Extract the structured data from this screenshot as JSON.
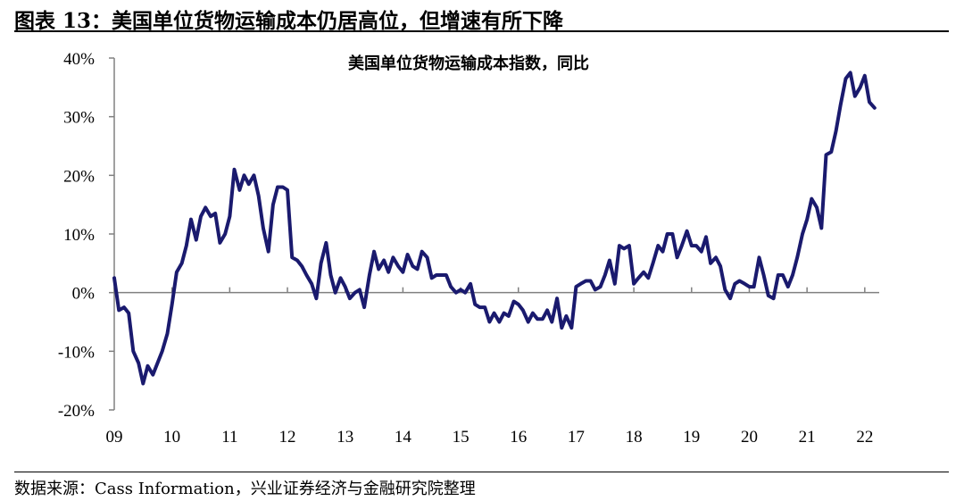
{
  "figure": {
    "title": "图表 13：美国单位货物运输成本仍居高位，但增速有所下降",
    "source": "数据来源：Cass Information，兴业证券经济与金融研究院整理"
  },
  "colors": {
    "line": "#1a1a6e",
    "axis": "#808080"
  },
  "chart_data": {
    "type": "line",
    "title": "美国单位货物运输成本指数，同比",
    "xlabel": "",
    "ylabel": "",
    "ylim": [
      -20,
      40
    ],
    "yticks": [
      -20,
      -10,
      0,
      10,
      20,
      30,
      40
    ],
    "ytick_labels": [
      "-20%",
      "-10%",
      "0%",
      "10%",
      "20%",
      "30%",
      "40%"
    ],
    "xticks": [
      2009,
      2010,
      2011,
      2012,
      2013,
      2014,
      2015,
      2016,
      2017,
      2018,
      2019,
      2020,
      2021,
      2022
    ],
    "xtick_labels": [
      "09",
      "10",
      "11",
      "12",
      "13",
      "14",
      "15",
      "16",
      "17",
      "18",
      "19",
      "20",
      "21",
      "22"
    ],
    "xlim": [
      2009,
      2022.25
    ],
    "grid": false,
    "legend": "none",
    "series": [
      {
        "points": [
          [
            2009.0,
            2.5
          ],
          [
            2009.08,
            -3.0
          ],
          [
            2009.17,
            -2.5
          ],
          [
            2009.25,
            -3.5
          ],
          [
            2009.33,
            -10.0
          ],
          [
            2009.42,
            -12.0
          ],
          [
            2009.5,
            -15.5
          ],
          [
            2009.58,
            -12.5
          ],
          [
            2009.67,
            -14.0
          ],
          [
            2009.75,
            -12.0
          ],
          [
            2009.83,
            -10.0
          ],
          [
            2009.92,
            -7.0
          ],
          [
            2010.0,
            -2.0
          ],
          [
            2010.08,
            3.5
          ],
          [
            2010.17,
            5.0
          ],
          [
            2010.25,
            8.0
          ],
          [
            2010.33,
            12.5
          ],
          [
            2010.42,
            9.0
          ],
          [
            2010.5,
            13.0
          ],
          [
            2010.58,
            14.5
          ],
          [
            2010.67,
            13.0
          ],
          [
            2010.75,
            13.5
          ],
          [
            2010.83,
            8.5
          ],
          [
            2010.92,
            10.0
          ],
          [
            2011.0,
            13.0
          ],
          [
            2011.08,
            21.0
          ],
          [
            2011.17,
            17.5
          ],
          [
            2011.25,
            20.0
          ],
          [
            2011.33,
            18.5
          ],
          [
            2011.42,
            20.0
          ],
          [
            2011.5,
            16.5
          ],
          [
            2011.58,
            11.0
          ],
          [
            2011.67,
            7.0
          ],
          [
            2011.75,
            15.0
          ],
          [
            2011.83,
            18.0
          ],
          [
            2011.92,
            18.0
          ],
          [
            2012.0,
            17.5
          ],
          [
            2012.08,
            6.0
          ],
          [
            2012.17,
            5.5
          ],
          [
            2012.25,
            4.5
          ],
          [
            2012.33,
            3.0
          ],
          [
            2012.42,
            1.5
          ],
          [
            2012.5,
            -1.0
          ],
          [
            2012.58,
            5.0
          ],
          [
            2012.67,
            8.5
          ],
          [
            2012.75,
            3.0
          ],
          [
            2012.83,
            0.0
          ],
          [
            2012.92,
            2.5
          ],
          [
            2013.0,
            1.0
          ],
          [
            2013.08,
            -1.0
          ],
          [
            2013.17,
            0.0
          ],
          [
            2013.25,
            0.5
          ],
          [
            2013.33,
            -2.5
          ],
          [
            2013.42,
            3.0
          ],
          [
            2013.5,
            7.0
          ],
          [
            2013.58,
            4.0
          ],
          [
            2013.67,
            5.5
          ],
          [
            2013.75,
            3.5
          ],
          [
            2013.83,
            6.0
          ],
          [
            2013.92,
            4.5
          ],
          [
            2014.0,
            3.5
          ],
          [
            2014.08,
            6.5
          ],
          [
            2014.17,
            4.5
          ],
          [
            2014.25,
            4.0
          ],
          [
            2014.33,
            7.0
          ],
          [
            2014.42,
            6.0
          ],
          [
            2014.5,
            2.5
          ],
          [
            2014.58,
            3.0
          ],
          [
            2014.67,
            3.0
          ],
          [
            2014.75,
            3.0
          ],
          [
            2014.83,
            1.0
          ],
          [
            2014.92,
            0.0
          ],
          [
            2015.0,
            0.5
          ],
          [
            2015.08,
            0.0
          ],
          [
            2015.17,
            1.5
          ],
          [
            2015.25,
            -2.0
          ],
          [
            2015.33,
            -2.5
          ],
          [
            2015.42,
            -2.5
          ],
          [
            2015.5,
            -5.0
          ],
          [
            2015.58,
            -3.5
          ],
          [
            2015.67,
            -5.0
          ],
          [
            2015.75,
            -3.5
          ],
          [
            2015.83,
            -4.0
          ],
          [
            2015.92,
            -1.5
          ],
          [
            2016.0,
            -2.0
          ],
          [
            2016.08,
            -3.0
          ],
          [
            2016.17,
            -5.0
          ],
          [
            2016.25,
            -3.5
          ],
          [
            2016.33,
            -4.5
          ],
          [
            2016.42,
            -4.5
          ],
          [
            2016.5,
            -3.0
          ],
          [
            2016.58,
            -5.0
          ],
          [
            2016.67,
            -1.0
          ],
          [
            2016.75,
            -6.0
          ],
          [
            2016.83,
            -4.0
          ],
          [
            2016.92,
            -6.0
          ],
          [
            2017.0,
            1.0
          ],
          [
            2017.08,
            1.5
          ],
          [
            2017.17,
            2.0
          ],
          [
            2017.25,
            2.0
          ],
          [
            2017.33,
            0.5
          ],
          [
            2017.42,
            1.0
          ],
          [
            2017.5,
            3.0
          ],
          [
            2017.58,
            5.5
          ],
          [
            2017.67,
            1.5
          ],
          [
            2017.75,
            8.0
          ],
          [
            2017.83,
            7.5
          ],
          [
            2017.92,
            8.0
          ],
          [
            2018.0,
            1.5
          ],
          [
            2018.08,
            2.5
          ],
          [
            2018.17,
            3.5
          ],
          [
            2018.25,
            2.5
          ],
          [
            2018.33,
            5.0
          ],
          [
            2018.42,
            8.0
          ],
          [
            2018.5,
            7.0
          ],
          [
            2018.58,
            10.0
          ],
          [
            2018.67,
            10.0
          ],
          [
            2018.75,
            6.0
          ],
          [
            2018.83,
            8.0
          ],
          [
            2018.92,
            10.5
          ],
          [
            2019.0,
            8.0
          ],
          [
            2019.08,
            8.0
          ],
          [
            2019.17,
            7.0
          ],
          [
            2019.25,
            9.5
          ],
          [
            2019.33,
            5.0
          ],
          [
            2019.42,
            6.0
          ],
          [
            2019.5,
            4.5
          ],
          [
            2019.58,
            0.5
          ],
          [
            2019.67,
            -1.0
          ],
          [
            2019.75,
            1.5
          ],
          [
            2019.83,
            2.0
          ],
          [
            2019.92,
            1.5
          ],
          [
            2020.0,
            1.0
          ],
          [
            2020.08,
            1.0
          ],
          [
            2020.17,
            6.0
          ],
          [
            2020.25,
            3.0
          ],
          [
            2020.33,
            -0.5
          ],
          [
            2020.42,
            -1.0
          ],
          [
            2020.5,
            3.0
          ],
          [
            2020.58,
            3.0
          ],
          [
            2020.67,
            1.0
          ],
          [
            2020.75,
            3.0
          ],
          [
            2020.83,
            6.0
          ],
          [
            2020.92,
            10.0
          ],
          [
            2021.0,
            12.5
          ],
          [
            2021.08,
            16.0
          ],
          [
            2021.17,
            14.5
          ],
          [
            2021.25,
            11.0
          ],
          [
            2021.33,
            23.5
          ],
          [
            2021.42,
            24.0
          ],
          [
            2021.5,
            27.5
          ],
          [
            2021.58,
            32.0
          ],
          [
            2021.67,
            36.5
          ],
          [
            2021.75,
            37.5
          ],
          [
            2021.83,
            33.5
          ],
          [
            2021.92,
            35.0
          ],
          [
            2022.0,
            37.0
          ],
          [
            2022.08,
            32.5
          ],
          [
            2022.17,
            31.5
          ]
        ]
      }
    ]
  }
}
